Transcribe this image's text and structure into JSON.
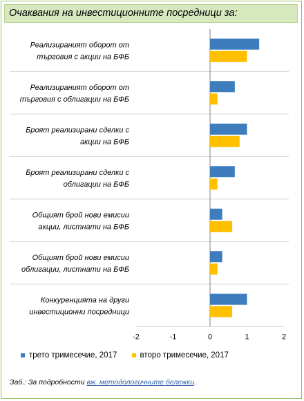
{
  "title": "Очаквания на инвестиционните посредници  за:",
  "colors": {
    "series1": "#3d7dbd",
    "series2": "#ffc000",
    "frame": "#8fbc5a",
    "title_bg": "#d7e8bf"
  },
  "chart_data": {
    "type": "bar",
    "orientation": "horizontal",
    "categories": [
      [
        "Реализираният оборот от",
        "търговия с акции на БФБ"
      ],
      [
        "Реализираният оборот от",
        "търговия с облигации на БФБ"
      ],
      [
        "Броят реализирани сделки с",
        "акции на БФБ"
      ],
      [
        "Броят реализирани сделки с",
        "облигации на БФБ"
      ],
      [
        "Общият брой нови емисии",
        "акции, листнати на БФБ"
      ],
      [
        "Общият брой нови емисии",
        "облигации, листнати на БФБ"
      ],
      [
        "Конкуренцията на други",
        "инвестиционни посредници"
      ]
    ],
    "series": [
      {
        "name": "трето тримесечие, 2017",
        "values": [
          1.33,
          0.67,
          1.0,
          0.67,
          0.33,
          0.33,
          1.0
        ]
      },
      {
        "name": "второ тримесечие, 2017",
        "values": [
          1.0,
          0.2,
          0.8,
          0.2,
          0.6,
          0.2,
          0.6
        ]
      }
    ],
    "xlim": [
      -2,
      2
    ],
    "xticks": [
      "-2",
      "-1",
      "0",
      "1",
      "2"
    ],
    "grid": "horizontal separators",
    "legend": "bottom"
  },
  "note": {
    "prefix": "Заб.: За подробности ",
    "link": "вж. методологичните бележки",
    "suffix": "."
  }
}
